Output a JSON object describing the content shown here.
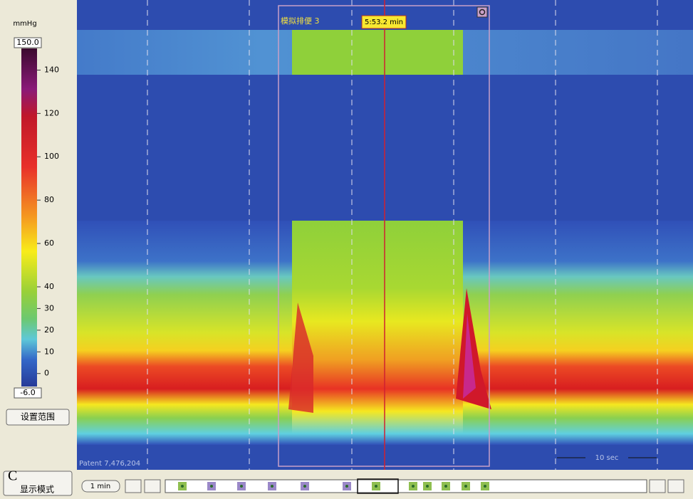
{
  "colorbar": {
    "unit": "mmHg",
    "range": [
      {
        "value": -6,
        "label": "-6.0"
      },
      {
        "value": 150,
        "label": "150.0"
      }
    ],
    "ticks": [
      140,
      120,
      100,
      80,
      60,
      40,
      30,
      20,
      10,
      0
    ]
  },
  "buttons": {
    "set_range": "设置范围",
    "display_mode_icon": "C",
    "display_mode": "显示模式",
    "zoom": "1 min"
  },
  "plot": {
    "event_label": "模拟排便 3",
    "cursor_time": "5:53.2 min",
    "patient": "Patent 7,476,204",
    "scale_bar": "10 sec"
  }
}
